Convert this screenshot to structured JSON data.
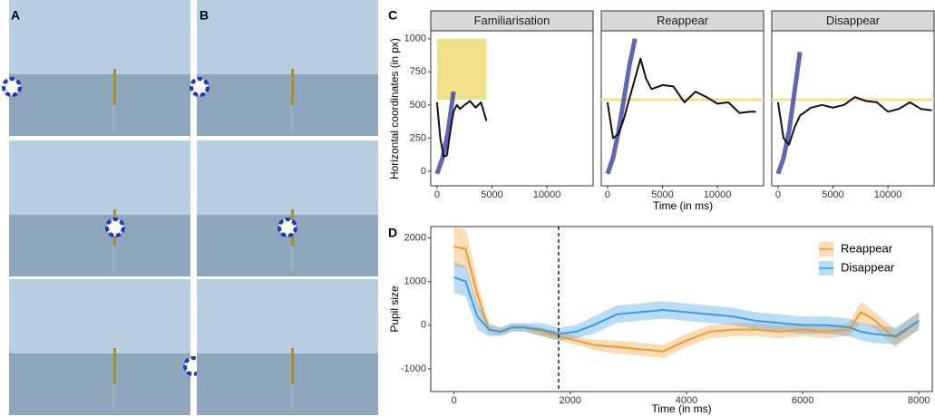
{
  "panels": [
    "A",
    "B",
    "C",
    "D"
  ],
  "chart_data": [
    {
      "type": "facet-line",
      "y_label": "Horizontal coordinates (in px)",
      "x_label": "Time (in ms)",
      "ylim": [
        -110,
        1060
      ],
      "yticks": [
        0,
        250,
        500,
        750,
        1000
      ],
      "xlim": [
        -570,
        14200
      ],
      "xticks": [
        0,
        5000,
        10000
      ],
      "facets": [
        {
          "title": "Familiarisation",
          "target_region": {
            "x": [
              0,
              4500
            ],
            "y": [
              540,
              1000
            ],
            "color": "#f0e08a"
          },
          "series": [
            {
              "color": "#3a3fa0",
              "x": [
                0,
                500,
                1000,
                1500
              ],
              "values": [
                -20,
                100,
                300,
                600
              ]
            },
            {
              "color": "#111111",
              "x": [
                0,
                300,
                600,
                900,
                1200,
                1500,
                1800,
                2100,
                2500,
                3000,
                3500,
                4000,
                4500
              ],
              "values": [
                520,
                250,
                110,
                120,
                300,
                450,
                500,
                470,
                500,
                530,
                480,
                520,
                380
              ]
            }
          ]
        },
        {
          "title": "Reappear",
          "target_line": {
            "value": 540,
            "color": "#f0e08a"
          },
          "series": [
            {
              "color": "#3a3fa0",
              "x": [
                0,
                500,
                1000,
                1500,
                2000,
                2500
              ],
              "values": [
                -20,
                100,
                300,
                550,
                800,
                1000
              ]
            },
            {
              "color": "#111111",
              "x": [
                0,
                500,
                1000,
                1500,
                2000,
                2500,
                3000,
                3500,
                4000,
                5000,
                6000,
                7000,
                8000,
                9000,
                10000,
                11000,
                12000,
                13000,
                13500
              ],
              "values": [
                520,
                250,
                280,
                400,
                550,
                700,
                850,
                700,
                620,
                650,
                640,
                520,
                600,
                560,
                510,
                520,
                440,
                450,
                450
              ]
            }
          ]
        },
        {
          "title": "Disappear",
          "target_line": {
            "value": 540,
            "color": "#f0e08a"
          },
          "series": [
            {
              "color": "#3a3fa0",
              "x": [
                0,
                500,
                1000,
                1500,
                2000
              ],
              "values": [
                -20,
                100,
                300,
                600,
                900
              ]
            },
            {
              "color": "#111111",
              "x": [
                0,
                500,
                1000,
                1500,
                2000,
                3000,
                4000,
                5000,
                6000,
                7000,
                8000,
                9000,
                10000,
                11000,
                12000,
                13000,
                14000
              ],
              "values": [
                520,
                250,
                200,
                330,
                420,
                480,
                500,
                480,
                500,
                560,
                530,
                520,
                450,
                470,
                520,
                470,
                460
              ]
            }
          ]
        }
      ]
    },
    {
      "type": "line",
      "y_label": "Pupil size",
      "x_label": "Time (in ms)",
      "ylim": [
        -1520,
        2260
      ],
      "yticks": [
        -1000,
        0,
        1000,
        2000
      ],
      "xlim": [
        -400,
        8230
      ],
      "xticks": [
        0,
        2000,
        4000,
        6000,
        8000
      ],
      "vline": 1800,
      "legend": "top-right",
      "x": [
        0,
        200,
        400,
        600,
        800,
        1000,
        1200,
        1500,
        1800,
        2100,
        2400,
        2800,
        3200,
        3600,
        4000,
        4400,
        4800,
        5200,
        5600,
        6000,
        6400,
        6800,
        7000,
        7200,
        7600,
        8000
      ],
      "series": [
        {
          "name": "Reappear",
          "color": "#f39a2e",
          "values": [
            1800,
            1750,
            700,
            -100,
            -150,
            -50,
            -50,
            -150,
            -250,
            -350,
            -450,
            -500,
            -550,
            -600,
            -350,
            -150,
            -100,
            -100,
            -150,
            -100,
            -150,
            -100,
            300,
            150,
            -300,
            100
          ],
          "errors": [
            450,
            450,
            300,
            100,
            80,
            80,
            80,
            100,
            100,
            100,
            120,
            150,
            150,
            150,
            150,
            150,
            150,
            150,
            150,
            150,
            150,
            150,
            250,
            200,
            200,
            200
          ]
        },
        {
          "name": "Disappear",
          "color": "#3b9ae8",
          "values": [
            1100,
            1000,
            200,
            -100,
            -150,
            -50,
            -50,
            -100,
            -200,
            -150,
            0,
            250,
            300,
            350,
            300,
            250,
            200,
            100,
            50,
            0,
            0,
            -50,
            -150,
            -200,
            -250,
            100
          ],
          "errors": [
            350,
            350,
            300,
            150,
            100,
            100,
            100,
            150,
            150,
            150,
            200,
            200,
            200,
            200,
            200,
            200,
            200,
            200,
            200,
            200,
            200,
            200,
            200,
            200,
            200,
            200
          ]
        }
      ]
    }
  ]
}
